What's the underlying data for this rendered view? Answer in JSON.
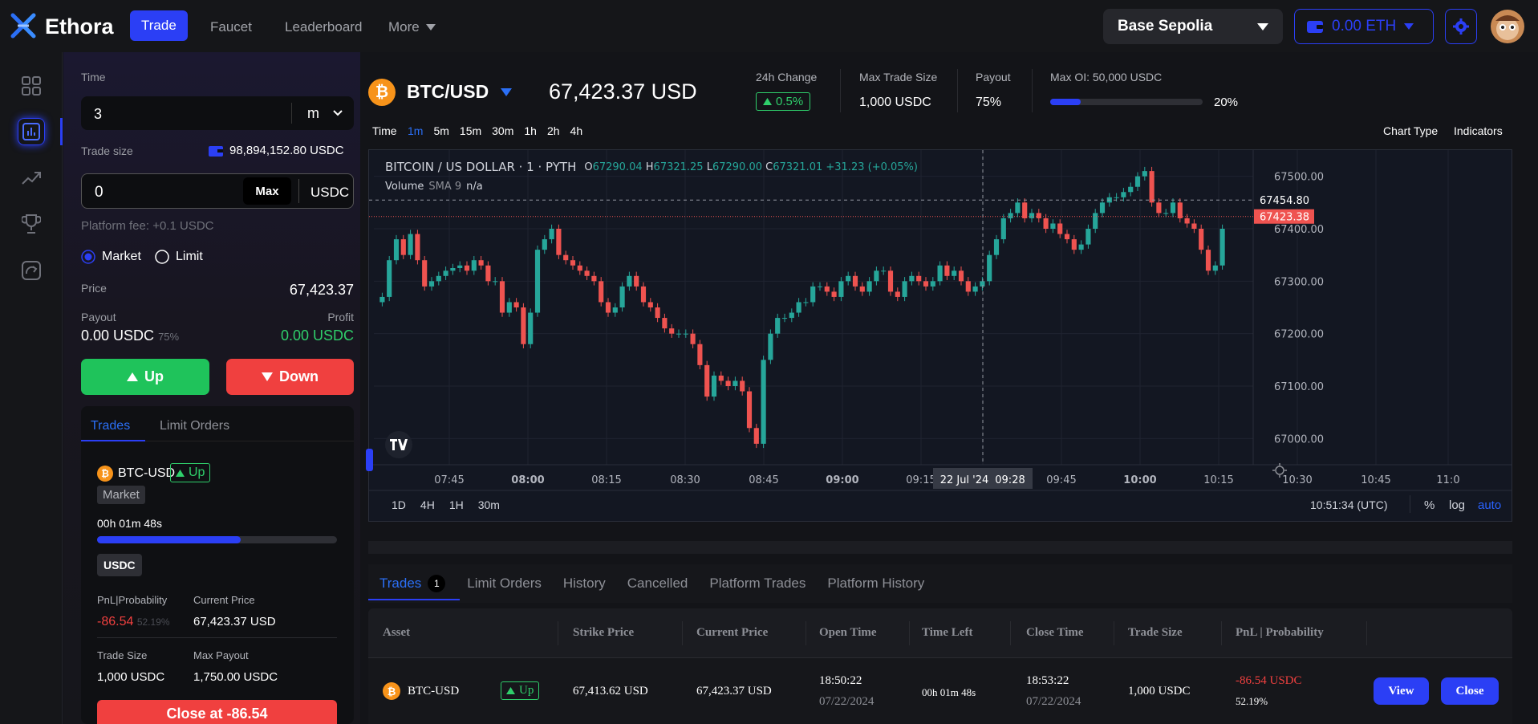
{
  "app": {
    "name": "Ethora"
  },
  "nav": {
    "trade": "Trade",
    "faucet": "Faucet",
    "leaderboard": "Leaderboard",
    "more": "More"
  },
  "network": {
    "name": "Base Sepolia"
  },
  "wallet": {
    "balance": "0.00 ETH"
  },
  "colors": {
    "accent": "#2b3ff5",
    "up": "#26a69a",
    "down": "#ef5350",
    "green": "#2fcf6b",
    "red": "#f0403f"
  },
  "left": {
    "time_label": "Time",
    "time_value": "3",
    "time_unit": "m",
    "trade_size_label": "Trade size",
    "balance": "98,894,152.80 USDC",
    "trade_size_value": "0",
    "max_label": "Max",
    "currency": "USDC",
    "fee": "Platform fee: +0.1 USDC",
    "market": "Market",
    "limit": "Limit",
    "price_label": "Price",
    "price_value": "67,423.37",
    "payout_label": "Payout",
    "payout_value": "0.00 USDC",
    "payout_pct": "75%",
    "profit_label": "Profit",
    "profit_value": "0.00 USDC",
    "up": "Up",
    "down": "Down",
    "tab_trades": "Trades",
    "tab_limit": "Limit Orders",
    "card": {
      "asset": "BTC-USD",
      "direction": "Up",
      "type": "Market",
      "timer": "00h 01m 48s",
      "progress": 0.6,
      "currency": "USDC",
      "pnl_label": "PnL|Probability",
      "pnl_value": "-86.54",
      "prob_value": "52.19%",
      "cur_price_label": "Current Price",
      "cur_price_value": "67,423.37 USD",
      "size_label": "Trade Size",
      "size_value": "1,000 USDC",
      "max_payout_label": "Max Payout",
      "max_payout_value": "1,750.00 USDC",
      "close_btn": "Close at -86.54"
    }
  },
  "header": {
    "pair": "BTC/USD",
    "price": "67,423.37 USD",
    "change_label": "24h Change",
    "change_value": "0.5%",
    "max_trade_label": "Max Trade Size",
    "max_trade_value": "1,000 USDC",
    "payout_label": "Payout",
    "payout_value": "75%",
    "max_oi_label": "Max OI: 50,000 USDC",
    "oi_pct": "20%",
    "oi_fraction": 0.2
  },
  "timeframes": {
    "label": "Time",
    "items": [
      "1m",
      "5m",
      "15m",
      "30m",
      "1h",
      "2h",
      "4h"
    ],
    "active": "1m",
    "chart_type": "Chart Type",
    "indicators": "Indicators"
  },
  "chart": {
    "legend_title": "BITCOIN / US DOLLAR · 1 · PYTH",
    "o_label": "O",
    "o": "67290.04",
    "h_label": "H",
    "h": "67321.25",
    "l_label": "L",
    "l": "67290.00",
    "c_label": "C",
    "c": "67321.01",
    "chg": "+31.23 (+0.05%)",
    "volume": "Volume",
    "sma": "SMA 9",
    "na": "n/a",
    "crosshair_time": "22 Jul '24",
    "crosshair_hhmm": "09:28",
    "price_tag_dash": "67454.80",
    "price_tag_last": "67423.38",
    "ranges": [
      "1D",
      "4H",
      "1H",
      "30m"
    ],
    "clock": "10:51:34 (UTC)",
    "pct": "%",
    "log": "log",
    "auto": "auto"
  },
  "chart_data": {
    "type": "candlestick",
    "title": "BITCOIN / US DOLLAR · 1 · PYTH",
    "ylim": [
      66950,
      67550
    ],
    "y_ticks": [
      67000,
      67100,
      67200,
      67300,
      67400,
      67500
    ],
    "y_tick_labels": [
      "67000.00",
      "67100.00",
      "67200.00",
      "67300.00",
      "67400.00",
      "67500.00"
    ],
    "x_tick_labels": [
      "07:45",
      "08:00",
      "08:15",
      "08:30",
      "08:45",
      "09:00",
      "09:15",
      "09:28",
      "09:45",
      "10:00",
      "10:15",
      "10:30",
      "10:45",
      "11:0"
    ],
    "close": [
      67270,
      67340,
      67380,
      67350,
      67390,
      67340,
      67290,
      67300,
      67310,
      67320,
      67325,
      67330,
      67320,
      67340,
      67330,
      67300,
      67300,
      67240,
      67260,
      67250,
      67180,
      67240,
      67360,
      67380,
      67400,
      67350,
      67340,
      67330,
      67320,
      67310,
      67300,
      67260,
      67240,
      67250,
      67290,
      67310,
      67290,
      67260,
      67250,
      67230,
      67210,
      67200,
      67200,
      67200,
      67180,
      67140,
      67080,
      67120,
      67110,
      67100,
      67110,
      67090,
      67020,
      66990,
      67150,
      67200,
      67230,
      67230,
      67240,
      67260,
      67260,
      67290,
      67290,
      67280,
      67270,
      67300,
      67310,
      67290,
      67280,
      67300,
      67320,
      67320,
      67280,
      67270,
      67300,
      67310,
      67300,
      67290,
      67300,
      67330,
      67310,
      67320,
      67300,
      67280,
      67290,
      67300,
      67350,
      67380,
      67420,
      67430,
      67450,
      67420,
      67430,
      67420,
      67400,
      67410,
      67390,
      67380,
      67360,
      67370,
      67400,
      67430,
      67450,
      67460,
      67460,
      67470,
      67480,
      67500,
      67510,
      67450,
      67430,
      67430,
      67450,
      67420,
      67410,
      67400,
      67360,
      67320,
      67330,
      67400
    ],
    "last_price": 67423.38
  },
  "bottom": {
    "tabs": [
      "Trades",
      "Limit Orders",
      "History",
      "Cancelled",
      "Platform Trades",
      "Platform History"
    ],
    "trades_count": "1",
    "headers": [
      "Asset",
      "Strike Price",
      "Current Price",
      "Open Time",
      "Time Left",
      "Close Time",
      "Trade Size",
      "PnL | Probability"
    ],
    "row": {
      "asset": "BTC-USD",
      "dir": "Up",
      "strike": "67,413.62 USD",
      "current": "67,423.37 USD",
      "open_time": "18:50:22",
      "open_date": "07/22/2024",
      "time_left": "00h 01m 48s",
      "close_time": "18:53:22",
      "close_date": "07/22/2024",
      "size": "1,000 USDC",
      "pnl": "-86.54 USDC",
      "prob": "52.19%",
      "view": "View",
      "close": "Close"
    }
  }
}
